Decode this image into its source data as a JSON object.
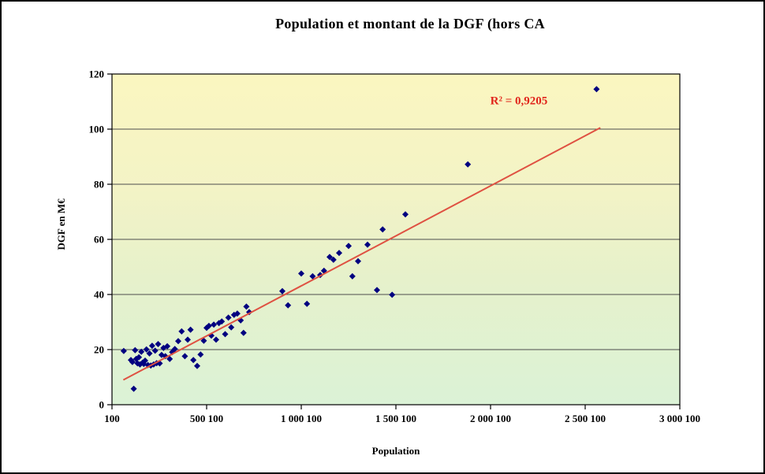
{
  "window": {
    "background": "#FFFFFF",
    "border_color": "#000000"
  },
  "chart_data": {
    "type": "scatter",
    "title": "Population et montant de la DGF (hors CA",
    "xlabel": "Population",
    "ylabel": "DGF en M€",
    "xlim": [
      100,
      3000100
    ],
    "ylim": [
      0,
      120
    ],
    "x_ticks": [
      {
        "value": 100,
        "label": "100"
      },
      {
        "value": 500100,
        "label": "500 100"
      },
      {
        "value": 1000100,
        "label": "1 000 100"
      },
      {
        "value": 1500100,
        "label": "1 500 100"
      },
      {
        "value": 2000100,
        "label": "2 000 100"
      },
      {
        "value": 2500100,
        "label": "2 500 100"
      },
      {
        "value": 3000100,
        "label": "3 000 100"
      }
    ],
    "y_ticks": [
      {
        "value": 0,
        "label": "0"
      },
      {
        "value": 20,
        "label": "20"
      },
      {
        "value": 40,
        "label": "40"
      },
      {
        "value": 60,
        "label": "60"
      },
      {
        "value": 80,
        "label": "80"
      },
      {
        "value": 100,
        "label": "100"
      },
      {
        "value": 120,
        "label": "120"
      }
    ],
    "grid": "horizontal-major",
    "grid_color": "#4D4D4D",
    "plot_bg_gradient": [
      "#FBF6C0",
      "#F3F3C6",
      "#E6F1CB",
      "#DBF2D6"
    ],
    "marker": {
      "shape": "diamond",
      "color": "#000080",
      "size": 4
    },
    "series": [
      {
        "points": [
          [
            62000,
            19.5
          ],
          [
            100000,
            16.2
          ],
          [
            108000,
            15.5
          ],
          [
            115000,
            5.8
          ],
          [
            122000,
            19.8
          ],
          [
            128000,
            16.6
          ],
          [
            135000,
            15.0
          ],
          [
            142000,
            17.2
          ],
          [
            148000,
            14.6
          ],
          [
            155000,
            19.2
          ],
          [
            162000,
            15.3
          ],
          [
            168000,
            14.8
          ],
          [
            175000,
            16.0
          ],
          [
            182000,
            20.1
          ],
          [
            190000,
            14.4
          ],
          [
            198000,
            18.6
          ],
          [
            205000,
            14.2
          ],
          [
            212000,
            21.4
          ],
          [
            220000,
            14.6
          ],
          [
            228000,
            19.6
          ],
          [
            236000,
            15.1
          ],
          [
            244000,
            22.0
          ],
          [
            252000,
            15.0
          ],
          [
            262000,
            18.1
          ],
          [
            272000,
            20.6
          ],
          [
            282000,
            17.6
          ],
          [
            292000,
            21.2
          ],
          [
            305000,
            16.6
          ],
          [
            318000,
            19.1
          ],
          [
            332000,
            20.2
          ],
          [
            350000,
            23.1
          ],
          [
            368000,
            26.6
          ],
          [
            385000,
            17.6
          ],
          [
            400000,
            23.6
          ],
          [
            415000,
            27.2
          ],
          [
            430000,
            16.2
          ],
          [
            450000,
            14.1
          ],
          [
            468000,
            18.2
          ],
          [
            485000,
            23.2
          ],
          [
            500000,
            27.9
          ],
          [
            512000,
            28.6
          ],
          [
            525000,
            25.1
          ],
          [
            538000,
            29.1
          ],
          [
            550000,
            23.6
          ],
          [
            565000,
            29.6
          ],
          [
            580000,
            30.2
          ],
          [
            598000,
            25.6
          ],
          [
            615000,
            31.6
          ],
          [
            630000,
            28.1
          ],
          [
            645000,
            32.6
          ],
          [
            662000,
            33.1
          ],
          [
            680000,
            30.6
          ],
          [
            695000,
            26.1
          ],
          [
            710000,
            35.6
          ],
          [
            725000,
            33.6
          ],
          [
            900000,
            41.2
          ],
          [
            930000,
            36.1
          ],
          [
            1000000,
            47.6
          ],
          [
            1030000,
            36.6
          ],
          [
            1060000,
            46.6
          ],
          [
            1100000,
            47.1
          ],
          [
            1120000,
            48.6
          ],
          [
            1150000,
            53.6
          ],
          [
            1170000,
            52.6
          ],
          [
            1200000,
            55.1
          ],
          [
            1250000,
            57.6
          ],
          [
            1270000,
            46.6
          ],
          [
            1300000,
            52.1
          ],
          [
            1350000,
            58.1
          ],
          [
            1400000,
            41.6
          ],
          [
            1430000,
            63.6
          ],
          [
            1480000,
            39.9
          ],
          [
            1550000,
            69.1
          ],
          [
            1880000,
            87.2
          ],
          [
            2560000,
            114.5
          ]
        ]
      }
    ],
    "trendline": {
      "type": "linear",
      "color": "#DF5142",
      "x1": 60000,
      "y1": 9,
      "x2": 2580000,
      "y2": 100.5
    },
    "annotation": {
      "text": "R² = 0,9205",
      "x": 2150000,
      "y": 109,
      "color": "#E1251B"
    }
  }
}
